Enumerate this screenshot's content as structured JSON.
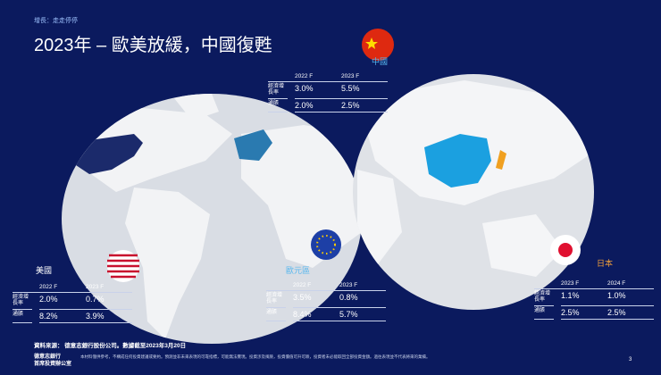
{
  "header": {
    "section": "增長：走走停停",
    "title": "2023年 – 歐美放緩，中國復甦"
  },
  "regions": [
    {
      "name": "中國",
      "columns": [
        "2022 F",
        "2023 F"
      ],
      "rows": [
        {
          "label": "經濟增長率",
          "values": [
            "3.0%",
            "5.5%"
          ]
        },
        {
          "label": "通脹",
          "values": [
            "2.0%",
            "2.5%"
          ]
        }
      ]
    },
    {
      "name": "美國",
      "columns": [
        "2022 F",
        "2023 F"
      ],
      "rows": [
        {
          "label": "經濟增長率",
          "values": [
            "2.0%",
            "0.7%"
          ]
        },
        {
          "label": "通脹",
          "values": [
            "8.2%",
            "3.9%"
          ]
        }
      ]
    },
    {
      "name": "歐元區",
      "columns": [
        "2022 F",
        "2023 F"
      ],
      "rows": [
        {
          "label": "經濟增長率",
          "values": [
            "3.5%",
            "0.8%"
          ]
        },
        {
          "label": "通脹",
          "values": [
            "8.4%",
            "5.7%"
          ]
        }
      ]
    },
    {
      "name": "日本",
      "columns": [
        "2023 F",
        "2024 F"
      ],
      "rows": [
        {
          "label": "經濟增長率",
          "values": [
            "1.1%",
            "1.0%"
          ]
        },
        {
          "label": "通脹",
          "values": [
            "2.5%",
            "2.5%"
          ]
        }
      ]
    }
  ],
  "footer": {
    "source": "資料來源： 德意志銀行股份公司。數據截至2023年3月20日",
    "disclaimer": "本材料僅供參考，不構成任何投資建議或要約。預測並非未來表現的可靠指標，可能無法實現。投資涉及風險，投資價值可升可跌，投資者未必能取回全部投資金額。過往表現並不代表將來的業績。",
    "brand": [
      "德意志銀行",
      "首席投資辦公室"
    ],
    "page": "3"
  }
}
